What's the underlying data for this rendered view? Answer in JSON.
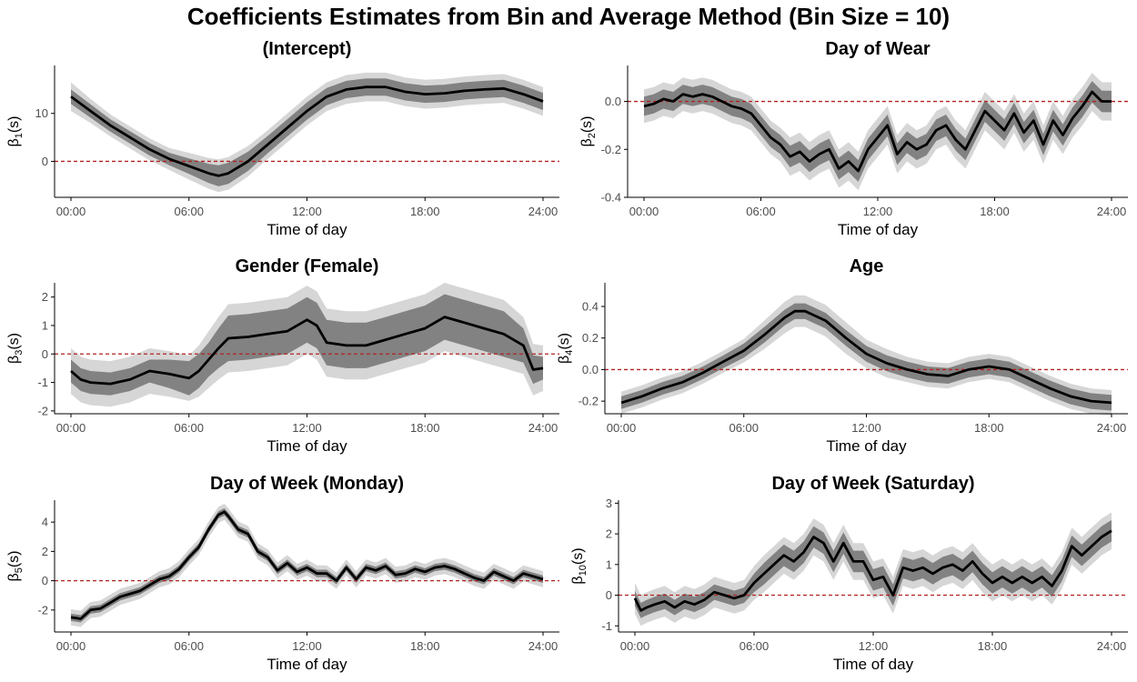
{
  "figure": {
    "title": "Coefficients Estimates from Bin and Average Method (Bin Size = 10)"
  },
  "colors": {
    "outer_band": "#d6d6d6",
    "inner_band": "#828282",
    "line": "#000000",
    "zero_line": "#b22222",
    "axis": "#000000",
    "tick_label": "#4d4d4d"
  },
  "chart_data": [
    {
      "type": "line",
      "title": "(Intercept)",
      "xlabel": "Time of day",
      "ylabel_base": "β",
      "ylabel_sub": "1",
      "ylabel_suffix": "(s)",
      "x_ticks": [
        "00:00",
        "06:00",
        "12:00",
        "18:00",
        "24:00"
      ],
      "x_tick_values": [
        0,
        6,
        12,
        18,
        24
      ],
      "y_ticks": [
        0,
        10
      ],
      "ylim": [
        -7.5,
        20
      ],
      "reference_line": 0,
      "x": [
        0,
        1,
        2,
        3,
        4,
        5,
        6,
        7,
        7.5,
        8,
        9,
        10,
        11,
        12,
        13,
        14,
        15,
        16,
        17,
        18,
        19,
        20,
        21,
        22,
        23,
        24
      ],
      "estimate": [
        13.5,
        10.5,
        7.5,
        5,
        2.5,
        0.5,
        -1,
        -2.5,
        -3,
        -2.5,
        0,
        3.5,
        7,
        10.5,
        13.5,
        15,
        15.5,
        15.5,
        14.5,
        14,
        14.2,
        14.7,
        15,
        15.2,
        14,
        12.5
      ],
      "inner_half_width": [
        1.5,
        1.4,
        1.3,
        1.3,
        1.3,
        1.3,
        1.6,
        2.0,
        2.2,
        2.2,
        2.0,
        1.8,
        1.8,
        1.8,
        1.8,
        1.8,
        1.8,
        1.8,
        1.8,
        1.8,
        1.8,
        1.8,
        1.8,
        1.8,
        1.8,
        1.8
      ],
      "outer_half_width": [
        3.0,
        2.5,
        2.3,
        2.3,
        2.3,
        2.3,
        2.8,
        3.2,
        3.4,
        3.4,
        3.2,
        3.0,
        3.0,
        3.0,
        3.0,
        3.0,
        3.0,
        3.0,
        3.0,
        3.0,
        3.0,
        3.0,
        3.0,
        3.0,
        3.0,
        3.0
      ]
    },
    {
      "type": "line",
      "title": "Day of Wear",
      "xlabel": "Time of day",
      "ylabel_base": "β",
      "ylabel_sub": "2",
      "ylabel_suffix": "(s)",
      "x_ticks": [
        "00:00",
        "06:00",
        "12:00",
        "18:00",
        "24:00"
      ],
      "x_tick_values": [
        0,
        6,
        12,
        18,
        24
      ],
      "y_ticks": [
        -0.4,
        -0.2,
        0.0
      ],
      "y_tick_labels": [
        "-0.4",
        "-0.2",
        "0.0"
      ],
      "ylim": [
        -0.4,
        0.15
      ],
      "reference_line": 0,
      "x": [
        0,
        0.5,
        1,
        1.5,
        2,
        2.5,
        3,
        3.5,
        4,
        4.5,
        5,
        5.5,
        6,
        6.5,
        7,
        7.5,
        8,
        8.5,
        9,
        9.5,
        10,
        10.5,
        11,
        11.5,
        12,
        12.5,
        13,
        13.5,
        14,
        14.5,
        15,
        15.5,
        16,
        16.5,
        17,
        17.5,
        18,
        18.5,
        19,
        19.5,
        20,
        20.5,
        21,
        21.5,
        22,
        22.5,
        23,
        23.5,
        24
      ],
      "estimate": [
        -0.02,
        -0.01,
        0.01,
        0.0,
        0.03,
        0.02,
        0.03,
        0.02,
        0.0,
        -0.02,
        -0.03,
        -0.05,
        -0.1,
        -0.15,
        -0.18,
        -0.23,
        -0.21,
        -0.25,
        -0.22,
        -0.2,
        -0.28,
        -0.25,
        -0.29,
        -0.2,
        -0.15,
        -0.1,
        -0.22,
        -0.17,
        -0.2,
        -0.18,
        -0.12,
        -0.1,
        -0.16,
        -0.2,
        -0.12,
        -0.04,
        -0.08,
        -0.12,
        -0.05,
        -0.13,
        -0.08,
        -0.18,
        -0.08,
        -0.14,
        -0.07,
        -0.02,
        0.04,
        0.0,
        0.0
      ],
      "inner_half_width": [
        0.04,
        0.04,
        0.04,
        0.04,
        0.04,
        0.04,
        0.04,
        0.04,
        0.04,
        0.04,
        0.04,
        0.04,
        0.04,
        0.04,
        0.04,
        0.045,
        0.045,
        0.045,
        0.045,
        0.045,
        0.045,
        0.045,
        0.045,
        0.045,
        0.045,
        0.045,
        0.045,
        0.045,
        0.045,
        0.045,
        0.045,
        0.045,
        0.045,
        0.045,
        0.045,
        0.045,
        0.045,
        0.045,
        0.045,
        0.045,
        0.045,
        0.045,
        0.045,
        0.045,
        0.045,
        0.045,
        0.045,
        0.045,
        0.045
      ],
      "outer_half_width": [
        0.07,
        0.07,
        0.07,
        0.07,
        0.07,
        0.07,
        0.07,
        0.07,
        0.07,
        0.07,
        0.07,
        0.07,
        0.07,
        0.07,
        0.07,
        0.08,
        0.08,
        0.08,
        0.08,
        0.08,
        0.08,
        0.08,
        0.08,
        0.08,
        0.08,
        0.08,
        0.08,
        0.08,
        0.08,
        0.08,
        0.08,
        0.08,
        0.08,
        0.08,
        0.08,
        0.08,
        0.08,
        0.08,
        0.08,
        0.08,
        0.08,
        0.08,
        0.08,
        0.08,
        0.08,
        0.08,
        0.08,
        0.08,
        0.08
      ]
    },
    {
      "type": "line",
      "title": "Gender (Female)",
      "xlabel": "Time of day",
      "ylabel_base": "β",
      "ylabel_sub": "3",
      "ylabel_suffix": "(s)",
      "x_ticks": [
        "00:00",
        "06:00",
        "12:00",
        "18:00",
        "24:00"
      ],
      "x_tick_values": [
        0,
        6,
        12,
        18,
        24
      ],
      "y_ticks": [
        -2,
        -1,
        0,
        1,
        2
      ],
      "ylim": [
        -2.1,
        2.5
      ],
      "reference_line": 0,
      "x": [
        0,
        0.5,
        1,
        2,
        3,
        4,
        5,
        6,
        6.5,
        7,
        7.5,
        8,
        9,
        10,
        11,
        12,
        12.5,
        13,
        14,
        15,
        16,
        17,
        18,
        19,
        20,
        21,
        22,
        23,
        23.5,
        24
      ],
      "estimate": [
        -0.6,
        -0.9,
        -1.0,
        -1.05,
        -0.9,
        -0.6,
        -0.7,
        -0.85,
        -0.6,
        -0.2,
        0.2,
        0.55,
        0.6,
        0.7,
        0.8,
        1.2,
        1.0,
        0.4,
        0.3,
        0.3,
        0.5,
        0.7,
        0.9,
        1.3,
        1.1,
        0.9,
        0.7,
        0.3,
        -0.55,
        -0.5
      ],
      "inner_half_width": [
        0.4,
        0.4,
        0.4,
        0.4,
        0.4,
        0.4,
        0.5,
        0.6,
        0.6,
        0.6,
        0.7,
        0.8,
        0.8,
        0.8,
        0.8,
        0.8,
        0.8,
        0.8,
        0.8,
        0.8,
        0.8,
        0.8,
        0.8,
        0.8,
        0.8,
        0.8,
        0.8,
        0.6,
        0.5,
        0.4
      ],
      "outer_half_width": [
        0.8,
        0.8,
        0.8,
        0.8,
        0.8,
        0.8,
        0.8,
        0.8,
        0.9,
        1.0,
        1.1,
        1.2,
        1.2,
        1.2,
        1.2,
        1.2,
        1.2,
        1.2,
        1.2,
        1.2,
        1.2,
        1.2,
        1.2,
        1.2,
        1.2,
        1.2,
        1.2,
        1.0,
        0.9,
        0.8
      ]
    },
    {
      "type": "line",
      "title": "Age",
      "xlabel": "Time of day",
      "ylabel_base": "β",
      "ylabel_sub": "4",
      "ylabel_suffix": "(s)",
      "x_ticks": [
        "00:00",
        "06:00",
        "12:00",
        "18:00",
        "24:00"
      ],
      "x_tick_values": [
        0,
        6,
        12,
        18,
        24
      ],
      "y_ticks": [
        -0.2,
        0.0,
        0.2,
        0.4
      ],
      "y_tick_labels": [
        "-0.2",
        "0.0",
        "0.2",
        "0.4"
      ],
      "ylim": [
        -0.28,
        0.55
      ],
      "reference_line": 0,
      "x": [
        0,
        1,
        2,
        3,
        4,
        5,
        6,
        7,
        8,
        8.5,
        9,
        10,
        11,
        12,
        13,
        14,
        15,
        16,
        17,
        18,
        19,
        20,
        21,
        22,
        23,
        24
      ],
      "estimate": [
        -0.21,
        -0.17,
        -0.12,
        -0.08,
        -0.02,
        0.05,
        0.12,
        0.22,
        0.33,
        0.37,
        0.37,
        0.31,
        0.2,
        0.1,
        0.04,
        0.0,
        -0.03,
        -0.04,
        0.0,
        0.02,
        0.0,
        -0.06,
        -0.12,
        -0.17,
        -0.2,
        -0.21
      ],
      "inner_half_width": [
        0.04,
        0.04,
        0.04,
        0.04,
        0.04,
        0.04,
        0.045,
        0.05,
        0.05,
        0.05,
        0.05,
        0.05,
        0.05,
        0.05,
        0.05,
        0.05,
        0.05,
        0.05,
        0.05,
        0.05,
        0.05,
        0.05,
        0.05,
        0.05,
        0.05,
        0.05
      ],
      "outer_half_width": [
        0.07,
        0.07,
        0.07,
        0.07,
        0.07,
        0.07,
        0.075,
        0.09,
        0.1,
        0.1,
        0.1,
        0.1,
        0.1,
        0.09,
        0.09,
        0.08,
        0.08,
        0.08,
        0.08,
        0.08,
        0.08,
        0.08,
        0.08,
        0.08,
        0.08,
        0.08
      ]
    },
    {
      "type": "line",
      "title": "Day of Week (Monday)",
      "xlabel": "Time of day",
      "ylabel_base": "β",
      "ylabel_sub": "5",
      "ylabel_suffix": "(s)",
      "x_ticks": [
        "00:00",
        "06:00",
        "12:00",
        "18:00",
        "24:00"
      ],
      "x_tick_values": [
        0,
        6,
        12,
        18,
        24
      ],
      "y_ticks": [
        -2,
        0,
        2,
        4
      ],
      "ylim": [
        -3.5,
        5.5
      ],
      "reference_line": 0,
      "x": [
        0,
        0.5,
        1,
        1.5,
        2,
        2.5,
        3,
        3.5,
        4,
        4.5,
        5,
        5.5,
        6,
        6.5,
        7,
        7.5,
        7.8,
        8,
        8.5,
        9,
        9.5,
        10,
        10.5,
        11,
        11.5,
        12,
        12.5,
        13,
        13.5,
        14,
        14.5,
        15,
        15.5,
        16,
        16.5,
        17,
        17.5,
        18,
        18.5,
        19,
        19.5,
        20,
        20.5,
        21,
        21.5,
        22,
        22.5,
        23,
        23.5,
        24
      ],
      "estimate": [
        -2.5,
        -2.6,
        -2.0,
        -1.9,
        -1.5,
        -1.1,
        -0.9,
        -0.7,
        -0.3,
        0.1,
        0.3,
        0.8,
        1.6,
        2.3,
        3.5,
        4.5,
        4.7,
        4.4,
        3.5,
        3.2,
        2.0,
        1.6,
        0.7,
        1.2,
        0.6,
        0.9,
        0.5,
        0.5,
        0.0,
        0.9,
        0.1,
        0.9,
        0.7,
        1.0,
        0.4,
        0.5,
        0.8,
        0.6,
        0.9,
        1.0,
        0.8,
        0.5,
        0.2,
        0.0,
        0.6,
        0.3,
        0.0,
        0.5,
        0.3,
        0.1
      ],
      "inner_half_width": [
        0.25,
        0.25,
        0.25,
        0.25,
        0.25,
        0.25,
        0.25,
        0.25,
        0.25,
        0.25,
        0.25,
        0.25,
        0.25,
        0.25,
        0.25,
        0.25,
        0.25,
        0.25,
        0.25,
        0.25,
        0.25,
        0.25,
        0.25,
        0.25,
        0.25,
        0.25,
        0.25,
        0.25,
        0.25,
        0.25,
        0.25,
        0.25,
        0.25,
        0.25,
        0.25,
        0.25,
        0.25,
        0.25,
        0.25,
        0.25,
        0.25,
        0.25,
        0.25,
        0.25,
        0.25,
        0.25,
        0.25,
        0.25,
        0.25,
        0.25
      ],
      "outer_half_width": [
        0.55,
        0.55,
        0.55,
        0.55,
        0.55,
        0.55,
        0.55,
        0.55,
        0.55,
        0.55,
        0.55,
        0.55,
        0.55,
        0.55,
        0.55,
        0.55,
        0.55,
        0.55,
        0.55,
        0.55,
        0.55,
        0.55,
        0.55,
        0.55,
        0.55,
        0.55,
        0.55,
        0.55,
        0.55,
        0.55,
        0.55,
        0.55,
        0.55,
        0.55,
        0.55,
        0.55,
        0.55,
        0.55,
        0.55,
        0.55,
        0.55,
        0.55,
        0.55,
        0.55,
        0.55,
        0.55,
        0.55,
        0.55,
        0.55,
        0.55
      ]
    },
    {
      "type": "line",
      "title": "Day of Week (Saturday)",
      "xlabel": "Time of day",
      "ylabel_base": "β",
      "ylabel_sub": "10",
      "ylabel_suffix": "(s)",
      "x_ticks": [
        "00:00",
        "06:00",
        "12:00",
        "18:00",
        "24:00"
      ],
      "x_tick_values": [
        0,
        6,
        12,
        18,
        24
      ],
      "y_ticks": [
        -1,
        0,
        1,
        2,
        3
      ],
      "ylim": [
        -1.2,
        3.1
      ],
      "reference_line": 0,
      "x": [
        0,
        0.3,
        0.6,
        1,
        1.5,
        2,
        2.5,
        3,
        3.5,
        4,
        4.5,
        5,
        5.5,
        6,
        6.5,
        7,
        7.5,
        8,
        8.5,
        9,
        9.5,
        10,
        10.5,
        11,
        11.5,
        12,
        12.5,
        13,
        13.5,
        14,
        14.5,
        15,
        15.5,
        16,
        16.5,
        17,
        17.5,
        18,
        18.5,
        19,
        19.5,
        20,
        20.5,
        21,
        21.5,
        22,
        22.5,
        23,
        23.5,
        24
      ],
      "estimate": [
        -0.1,
        -0.5,
        -0.4,
        -0.3,
        -0.2,
        -0.4,
        -0.2,
        -0.3,
        -0.15,
        0.1,
        0.0,
        -0.1,
        0.0,
        0.4,
        0.7,
        1.0,
        1.3,
        1.1,
        1.4,
        1.9,
        1.7,
        1.1,
        1.7,
        1.1,
        1.1,
        0.5,
        0.6,
        0.0,
        0.9,
        0.8,
        0.9,
        0.7,
        0.9,
        1.0,
        0.8,
        1.1,
        0.7,
        0.4,
        0.6,
        0.4,
        0.6,
        0.4,
        0.6,
        0.3,
        0.8,
        1.6,
        1.3,
        1.6,
        1.9,
        2.1
      ],
      "inner_half_width": [
        0.25,
        0.25,
        0.25,
        0.25,
        0.25,
        0.25,
        0.25,
        0.25,
        0.25,
        0.25,
        0.25,
        0.25,
        0.25,
        0.3,
        0.35,
        0.35,
        0.35,
        0.35,
        0.35,
        0.35,
        0.35,
        0.35,
        0.35,
        0.35,
        0.35,
        0.35,
        0.35,
        0.35,
        0.35,
        0.35,
        0.35,
        0.35,
        0.35,
        0.35,
        0.35,
        0.35,
        0.35,
        0.35,
        0.35,
        0.35,
        0.35,
        0.35,
        0.35,
        0.35,
        0.35,
        0.35,
        0.35,
        0.35,
        0.35,
        0.35
      ],
      "outer_half_width": [
        0.5,
        0.5,
        0.5,
        0.5,
        0.5,
        0.5,
        0.5,
        0.5,
        0.5,
        0.5,
        0.5,
        0.5,
        0.5,
        0.55,
        0.6,
        0.6,
        0.6,
        0.6,
        0.6,
        0.6,
        0.6,
        0.6,
        0.6,
        0.6,
        0.6,
        0.6,
        0.6,
        0.6,
        0.6,
        0.6,
        0.6,
        0.6,
        0.6,
        0.6,
        0.6,
        0.6,
        0.6,
        0.6,
        0.6,
        0.6,
        0.6,
        0.6,
        0.6,
        0.6,
        0.6,
        0.6,
        0.6,
        0.6,
        0.6,
        0.6
      ]
    }
  ]
}
